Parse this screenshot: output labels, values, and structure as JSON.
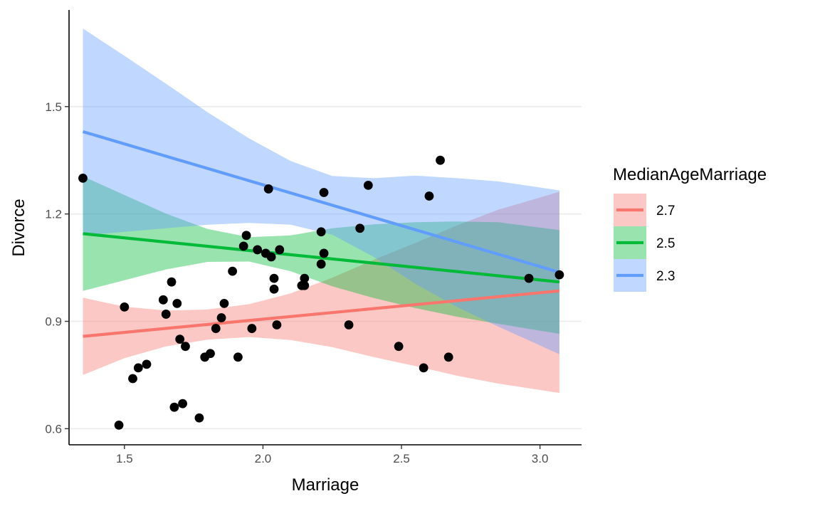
{
  "chart_data": {
    "type": "scatter",
    "title": "",
    "xlabel": "Marriage",
    "ylabel": "Divorce",
    "xlim": [
      1.3,
      3.15
    ],
    "ylim": [
      0.555,
      1.77
    ],
    "xticks": [
      1.5,
      2.0,
      2.5,
      3.0
    ],
    "xtick_labels": [
      "1.5",
      "2.0",
      "2.5",
      "3.0"
    ],
    "yticks": [
      0.6,
      0.9,
      1.2,
      1.5
    ],
    "ytick_labels": [
      "0.6",
      "0.9",
      "1.2",
      "1.5"
    ],
    "grid": "horizontal major",
    "legend": {
      "title": "MedianAgeMarriage",
      "placement": "right",
      "entries": [
        {
          "label": "2.7",
          "color": "#F8766D"
        },
        {
          "label": "2.5",
          "color": "#00BA38"
        },
        {
          "label": "2.3",
          "color": "#619CFF"
        }
      ]
    },
    "points": {
      "color": "#000000",
      "x": [
        1.35,
        1.48,
        1.5,
        1.53,
        1.55,
        1.58,
        1.64,
        1.65,
        1.67,
        1.68,
        1.69,
        1.7,
        1.71,
        1.72,
        1.77,
        1.79,
        1.81,
        1.83,
        1.85,
        1.86,
        1.89,
        1.91,
        1.93,
        1.94,
        1.96,
        1.98,
        2.01,
        2.02,
        2.03,
        2.04,
        2.04,
        2.05,
        2.06,
        2.14,
        2.15,
        2.15,
        2.21,
        2.21,
        2.22,
        2.22,
        2.31,
        2.35,
        2.38,
        2.49,
        2.58,
        2.6,
        2.64,
        2.67,
        2.96,
        3.07
      ],
      "y": [
        1.3,
        0.61,
        0.94,
        0.74,
        0.77,
        0.78,
        0.96,
        0.92,
        1.01,
        0.66,
        0.95,
        0.85,
        0.67,
        0.83,
        0.63,
        0.8,
        0.81,
        0.88,
        0.91,
        0.95,
        1.04,
        0.8,
        1.11,
        1.14,
        0.88,
        1.1,
        1.09,
        1.27,
        1.08,
        1.02,
        0.99,
        0.89,
        1.1,
        1.0,
        1.0,
        1.02,
        1.15,
        1.06,
        1.26,
        1.09,
        0.89,
        1.16,
        1.28,
        0.83,
        0.77,
        1.25,
        1.35,
        0.8,
        1.02,
        1.03
      ]
    },
    "series": [
      {
        "name": "2.7",
        "color": "#F8766D",
        "x": [
          1.35,
          1.5,
          1.65,
          1.8,
          1.95,
          2.1,
          2.25,
          2.4,
          2.55,
          2.7,
          2.85,
          3.07
        ],
        "y": [
          0.858,
          0.869,
          0.88,
          0.891,
          0.902,
          0.913,
          0.925,
          0.936,
          0.947,
          0.958,
          0.969,
          0.985
        ],
        "lower": [
          0.75,
          0.797,
          0.83,
          0.849,
          0.856,
          0.848,
          0.828,
          0.8,
          0.775,
          0.748,
          0.726,
          0.7
        ],
        "upper": [
          0.966,
          0.941,
          0.93,
          0.933,
          0.948,
          0.978,
          1.022,
          1.072,
          1.119,
          1.168,
          1.212,
          1.262
        ]
      },
      {
        "name": "2.5",
        "color": "#00BA38",
        "x": [
          1.35,
          1.5,
          1.65,
          1.8,
          1.95,
          2.1,
          2.25,
          2.4,
          2.55,
          2.7,
          2.85,
          3.07
        ],
        "y": [
          1.145,
          1.134,
          1.123,
          1.112,
          1.101,
          1.09,
          1.079,
          1.068,
          1.057,
          1.046,
          1.035,
          1.01
        ],
        "lower": [
          0.985,
          1.015,
          1.045,
          1.066,
          1.067,
          1.04,
          0.998,
          0.965,
          0.937,
          0.913,
          0.893,
          0.865
        ],
        "upper": [
          1.305,
          1.253,
          1.201,
          1.158,
          1.135,
          1.14,
          1.16,
          1.171,
          1.177,
          1.179,
          1.177,
          1.155
        ]
      },
      {
        "name": "2.3",
        "color": "#619CFF",
        "x": [
          1.35,
          1.5,
          1.65,
          1.8,
          1.95,
          2.1,
          2.25,
          2.4,
          2.55,
          2.7,
          2.85,
          3.07
        ],
        "y": [
          1.43,
          1.396,
          1.362,
          1.327,
          1.293,
          1.259,
          1.224,
          1.19,
          1.156,
          1.122,
          1.088,
          1.037
        ],
        "lower": [
          1.14,
          1.15,
          1.16,
          1.17,
          1.175,
          1.17,
          1.142,
          1.08,
          1.005,
          0.94,
          0.885,
          0.808
        ],
        "upper": [
          1.718,
          1.642,
          1.564,
          1.484,
          1.411,
          1.348,
          1.306,
          1.3,
          1.307,
          1.3,
          1.291,
          1.266
        ]
      }
    ]
  }
}
